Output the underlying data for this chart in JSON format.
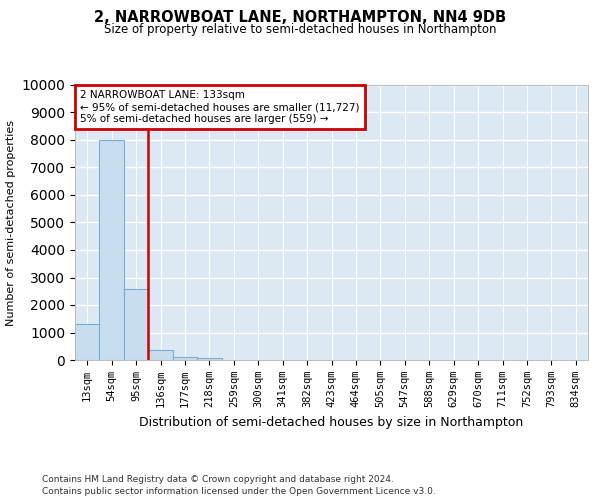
{
  "title_line1": "2, NARROWBOAT LANE, NORTHAMPTON, NN4 9DB",
  "title_line2": "Size of property relative to semi-detached houses in Northampton",
  "xlabel": "Distribution of semi-detached houses by size in Northampton",
  "ylabel": "Number of semi-detached properties",
  "bar_labels": [
    "13sqm",
    "54sqm",
    "95sqm",
    "136sqm",
    "177sqm",
    "218sqm",
    "259sqm",
    "300sqm",
    "341sqm",
    "382sqm",
    "423sqm",
    "464sqm",
    "505sqm",
    "547sqm",
    "588sqm",
    "629sqm",
    "670sqm",
    "711sqm",
    "752sqm",
    "793sqm",
    "834sqm"
  ],
  "bar_heights": [
    1300,
    8000,
    2600,
    380,
    120,
    60,
    0,
    0,
    0,
    0,
    0,
    0,
    0,
    0,
    0,
    0,
    0,
    0,
    0,
    0,
    0
  ],
  "bar_color": "#c9ddf0",
  "bar_edge_color": "#7aadd4",
  "property_line_color": "#cc0000",
  "annotation_text": "2 NARROWBOAT LANE: 133sqm\n← 95% of semi-detached houses are smaller (11,727)\n5% of semi-detached houses are larger (559) →",
  "annotation_box_color": "#ffffff",
  "annotation_box_edge_color": "#cc0000",
  "ylim": [
    0,
    10000
  ],
  "yticks": [
    0,
    1000,
    2000,
    3000,
    4000,
    5000,
    6000,
    7000,
    8000,
    9000,
    10000
  ],
  "footer_line1": "Contains HM Land Registry data © Crown copyright and database right 2024.",
  "footer_line2": "Contains public sector information licensed under the Open Government Licence v3.0.",
  "plot_bg_color": "#dce9f5",
  "fig_bg_color": "#ffffff",
  "grid_color": "#ffffff"
}
